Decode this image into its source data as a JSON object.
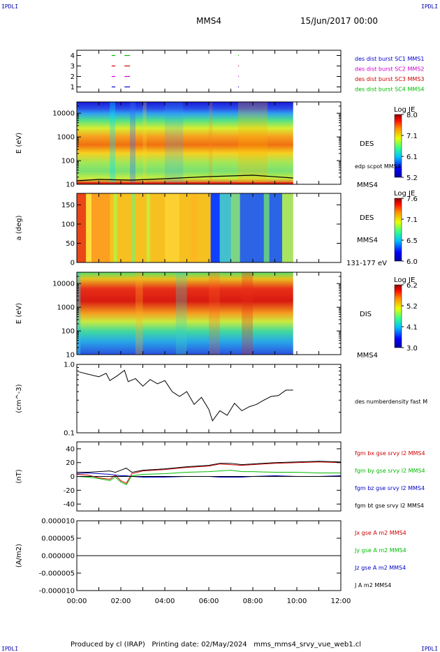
{
  "header": {
    "corner_label": "IPDLI",
    "spacecraft": "MMS4",
    "date": "15/Jun/2017 00:00"
  },
  "footer": {
    "produced_by": "Produced by cl (IRAP)",
    "printing_date": "Printing date: 02/May/2024",
    "config": "mms_mms4_srvy_vue_web1.cl"
  },
  "chart_data": [
    {
      "type": "line",
      "panel": "availability",
      "xlim": [
        "00:00",
        "12:00"
      ],
      "ylim": [
        0.5,
        4.5
      ],
      "yticks": [
        "1",
        "2",
        "3",
        "4"
      ],
      "series": [
        {
          "name": "des dist burst SC1 MMS1",
          "color": "#0000cc",
          "level": 1,
          "intervals": [
            [
              "01:35",
              "01:45"
            ],
            [
              "02:10",
              "02:25"
            ],
            [
              "07:20",
              "07:22"
            ]
          ]
        },
        {
          "name": "des dist burst SC2 MMS2",
          "color": "#cc00cc",
          "level": 2,
          "intervals": [
            [
              "01:35",
              "01:45"
            ],
            [
              "02:10",
              "02:25"
            ],
            [
              "07:20",
              "07:22"
            ]
          ]
        },
        {
          "name": "des dist burst SC3 MMS3",
          "color": "#cc0000",
          "level": 3,
          "intervals": [
            [
              "01:35",
              "01:45"
            ],
            [
              "02:10",
              "02:25"
            ],
            [
              "07:20",
              "07:22"
            ]
          ]
        },
        {
          "name": "des dist burst SC4 MMS4",
          "color": "#00bb00",
          "level": 4,
          "intervals": [
            [
              "01:35",
              "01:45"
            ],
            [
              "02:10",
              "02:25"
            ],
            [
              "07:20",
              "07:22"
            ]
          ]
        }
      ]
    },
    {
      "type": "heatmap",
      "panel": "des-energy",
      "ylabel": "E (eV)",
      "yscale": "log",
      "ylim": [
        10,
        30000
      ],
      "yticks": [
        "10",
        "100",
        "1000",
        "10000"
      ],
      "label": "DES",
      "overlay_label": "edp scpot MMS4",
      "spacecraft_label": "MMS4",
      "colorbar": {
        "title": "Log JE",
        "ticks": [
          "8.0",
          "7.1",
          "6.1",
          "5.2"
        ],
        "range": [
          5.2,
          8.0
        ]
      },
      "data_end": "09:50"
    },
    {
      "type": "heatmap",
      "panel": "des-pitch",
      "ylabel": "a (deg)",
      "ylim": [
        0,
        180
      ],
      "yticks": [
        "0",
        "50",
        "100",
        "150"
      ],
      "label": "DES",
      "spacecraft_label": "MMS4",
      "energy_range": "131-177 eV",
      "colorbar": {
        "title": "Log JE",
        "ticks": [
          "7.6",
          "7.1",
          "6.5",
          "6.0"
        ],
        "range": [
          6.0,
          7.6
        ]
      },
      "data_end": "09:50"
    },
    {
      "type": "heatmap",
      "panel": "dis-energy",
      "ylabel": "E (eV)",
      "yscale": "log",
      "ylim": [
        10,
        30000
      ],
      "yticks": [
        "10",
        "100",
        "1000",
        "10000"
      ],
      "label": "DIS",
      "spacecraft_label": "MMS4",
      "colorbar": {
        "title": "Log JE",
        "ticks": [
          "6.2",
          "5.2",
          "4.1",
          "3.0"
        ],
        "range": [
          3.0,
          6.2
        ]
      },
      "data_end": "09:50"
    },
    {
      "type": "line",
      "panel": "density",
      "ylabel": "(cm^-3)",
      "yscale": "log",
      "ylim": [
        0.1,
        1.0
      ],
      "yticks": [
        "0.1",
        "1.0"
      ],
      "series": [
        {
          "name": "des numberdensity fast M",
          "color": "#000000",
          "x": [
            "00:05",
            "00:30",
            "01:00",
            "01:20",
            "01:30",
            "01:50",
            "02:10",
            "02:20",
            "02:40",
            "03:00",
            "03:20",
            "03:40",
            "04:00",
            "04:20",
            "04:40",
            "05:00",
            "05:20",
            "05:40",
            "06:00",
            "06:10",
            "06:30",
            "06:50",
            "07:10",
            "07:30",
            "07:50",
            "08:10",
            "08:30",
            "08:50",
            "09:10",
            "09:30",
            "09:50"
          ],
          "y": [
            0.78,
            0.72,
            0.66,
            0.74,
            0.58,
            0.68,
            0.82,
            0.56,
            0.62,
            0.48,
            0.6,
            0.52,
            0.58,
            0.4,
            0.34,
            0.4,
            0.26,
            0.33,
            0.22,
            0.15,
            0.21,
            0.18,
            0.27,
            0.21,
            0.24,
            0.26,
            0.3,
            0.34,
            0.35,
            0.42,
            0.42
          ]
        }
      ]
    },
    {
      "type": "line",
      "panel": "magnetic-field",
      "ylabel": "(nT)",
      "ylim": [
        -50,
        50
      ],
      "yticks": [
        "-40",
        "-20",
        "0",
        "20",
        "40"
      ],
      "x": [
        "00:00",
        "00:30",
        "01:00",
        "01:30",
        "01:45",
        "02:00",
        "02:15",
        "02:30",
        "03:00",
        "04:00",
        "05:00",
        "06:00",
        "06:30",
        "07:00",
        "07:30",
        "08:00",
        "09:00",
        "10:00",
        "11:00",
        "12:00"
      ],
      "series": [
        {
          "name": "fgm bx gse srvy l2 MMS4",
          "color": "#cc0000",
          "values": [
            3,
            2,
            -2,
            -4,
            2,
            -6,
            -10,
            4,
            8,
            10,
            13,
            15,
            18,
            17,
            16,
            17,
            19,
            20,
            21,
            20
          ]
        },
        {
          "name": "fgm by gse srvy l2 MMS4",
          "color": "#00bb00",
          "values": [
            0,
            -1,
            -3,
            -6,
            -1,
            -8,
            -12,
            1,
            3,
            4,
            6,
            7,
            8,
            9,
            7,
            7,
            6,
            6,
            5,
            5
          ]
        },
        {
          "name": "fgm bz gse srvy l2 MMS4",
          "color": "#0000cc",
          "values": [
            4,
            5,
            4,
            3,
            2,
            1,
            1,
            0,
            -1,
            -1,
            0,
            0,
            -1,
            -1,
            -1,
            0,
            1,
            0,
            0,
            1
          ]
        },
        {
          "name": "fgm bt gse srvy l2 MMS4",
          "color": "#000000",
          "values": [
            6,
            6,
            7,
            8,
            6,
            9,
            12,
            6,
            9,
            11,
            14,
            16,
            19,
            19,
            17,
            18,
            20,
            21,
            22,
            21
          ]
        }
      ]
    },
    {
      "type": "line",
      "panel": "current-density",
      "ylabel": "(A/m2)",
      "ylim": [
        -1e-05,
        1e-05
      ],
      "yticks": [
        "-0.000010",
        "-0.000005",
        "0.000000",
        "0.000005",
        "0.000010"
      ],
      "series": [
        {
          "name": "Jx gse A m2 MMS4",
          "color": "#cc0000",
          "value": 0
        },
        {
          "name": "Jy gse A m2 MMS4",
          "color": "#00bb00",
          "value": 0
        },
        {
          "name": "Jz gse A m2 MMS4",
          "color": "#0000cc",
          "value": 0
        },
        {
          "name": "J A m2 MMS4",
          "color": "#000000",
          "value": 0
        }
      ]
    }
  ],
  "xaxis": {
    "ticks": [
      "00:00",
      "02:00",
      "04:00",
      "06:00",
      "08:00",
      "10:00",
      "12:00"
    ]
  }
}
